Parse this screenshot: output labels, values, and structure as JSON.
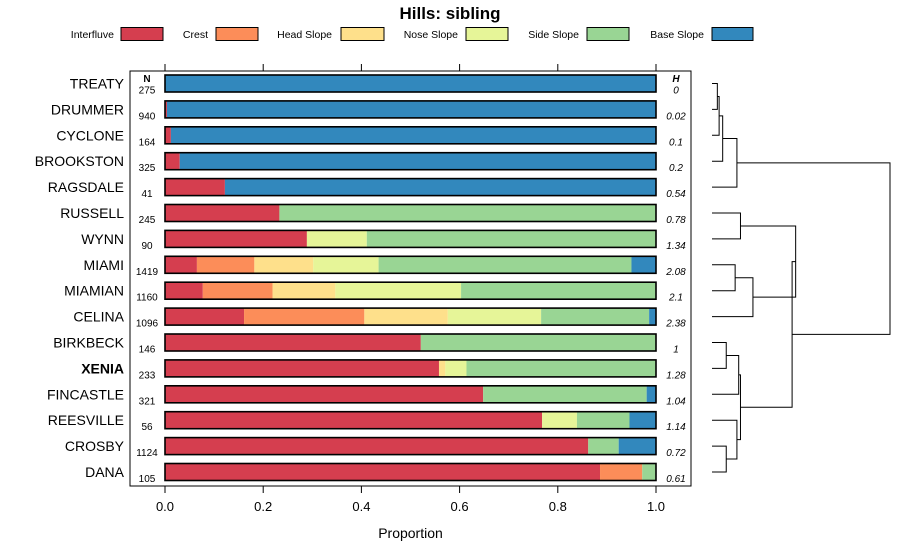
{
  "chart_data": {
    "type": "bar",
    "subtype": "stacked-horizontal-proportion",
    "title": "Hills: sibling",
    "xlabel": "Proportion",
    "xlim": [
      0,
      1
    ],
    "x_ticks": [
      "0.0",
      "0.2",
      "0.4",
      "0.6",
      "0.8",
      "1.0"
    ],
    "n_header": "N",
    "h_header": "H",
    "legend_position": "top",
    "series": [
      {
        "name": "Interfluve",
        "color": "#D53E4F"
      },
      {
        "name": "Crest",
        "color": "#FC8D59"
      },
      {
        "name": "Head Slope",
        "color": "#FEE08B"
      },
      {
        "name": "Nose Slope",
        "color": "#E6F598"
      },
      {
        "name": "Side Slope",
        "color": "#99D594"
      },
      {
        "name": "Base Slope",
        "color": "#3288BD"
      }
    ],
    "rows": [
      {
        "label": "TREATY",
        "n": "275",
        "h": "0",
        "bold": false,
        "values": [
          0,
          0,
          0,
          0,
          0,
          1.0
        ]
      },
      {
        "label": "DRUMMER",
        "n": "940",
        "h": "0.02",
        "bold": false,
        "values": [
          0.004,
          0,
          0,
          0,
          0,
          0.996
        ]
      },
      {
        "label": "CYCLONE",
        "n": "164",
        "h": "0.1",
        "bold": false,
        "values": [
          0.012,
          0,
          0,
          0,
          0,
          0.988
        ]
      },
      {
        "label": "BROOKSTON",
        "n": "325",
        "h": "0.2",
        "bold": false,
        "values": [
          0.03,
          0,
          0,
          0,
          0,
          0.97
        ]
      },
      {
        "label": "RAGSDALE",
        "n": "41",
        "h": "0.54",
        "bold": false,
        "values": [
          0.122,
          0,
          0,
          0,
          0,
          0.878
        ]
      },
      {
        "label": "RUSSELL",
        "n": "245",
        "h": "0.78",
        "bold": false,
        "values": [
          0.233,
          0,
          0,
          0,
          0.767,
          0
        ]
      },
      {
        "label": "WYNN",
        "n": "90",
        "h": "1.34",
        "bold": false,
        "values": [
          0.289,
          0,
          0,
          0.122,
          0.589,
          0
        ]
      },
      {
        "label": "MIAMI",
        "n": "1419",
        "h": "2.08",
        "bold": false,
        "values": [
          0.065,
          0.117,
          0.12,
          0.133,
          0.515,
          0.05
        ]
      },
      {
        "label": "MIAMIAN",
        "n": "1160",
        "h": "2.1",
        "bold": false,
        "values": [
          0.077,
          0.142,
          0.128,
          0.256,
          0.397,
          0
        ]
      },
      {
        "label": "CELINA",
        "n": "1096",
        "h": "2.38",
        "bold": false,
        "values": [
          0.161,
          0.245,
          0.17,
          0.19,
          0.22,
          0.014
        ]
      },
      {
        "label": "BIRKBECK",
        "n": "146",
        "h": "1",
        "bold": false,
        "values": [
          0.521,
          0,
          0,
          0,
          0.479,
          0
        ]
      },
      {
        "label": "XENIA",
        "n": "233",
        "h": "1.28",
        "bold": true,
        "values": [
          0.558,
          0,
          0.013,
          0.043,
          0.386,
          0
        ]
      },
      {
        "label": "FINCASTLE",
        "n": "321",
        "h": "1.04",
        "bold": false,
        "values": [
          0.648,
          0,
          0,
          0,
          0.333,
          0.019
        ]
      },
      {
        "label": "REESVILLE",
        "n": "56",
        "h": "1.14",
        "bold": false,
        "values": [
          0.768,
          0,
          0,
          0.071,
          0.107,
          0.054
        ]
      },
      {
        "label": "CROSBY",
        "n": "1124",
        "h": "0.72",
        "bold": false,
        "values": [
          0.862,
          0,
          0,
          0,
          0.062,
          0.076
        ]
      },
      {
        "label": "DANA",
        "n": "105",
        "h": "0.61",
        "bold": false,
        "values": [
          0.886,
          0.086,
          0,
          0,
          0.028,
          0
        ]
      }
    ],
    "dendrogram": {
      "clusters": [
        {
          "id": "c1",
          "left": "TREATY",
          "right": "DRUMMER",
          "height": 0.03
        },
        {
          "id": "c2",
          "left": "c1",
          "right": "CYCLONE",
          "height": 0.04
        },
        {
          "id": "c3",
          "left": "c2",
          "right": "BROOKSTON",
          "height": 0.06
        },
        {
          "id": "c4",
          "left": "c3",
          "right": "RAGSDALE",
          "height": 0.14
        },
        {
          "id": "c5",
          "left": "RUSSELL",
          "right": "WYNN",
          "height": 0.16
        },
        {
          "id": "c6",
          "left": "MIAMI",
          "right": "MIAMIAN",
          "height": 0.13
        },
        {
          "id": "c7",
          "left": "c6",
          "right": "CELINA",
          "height": 0.23
        },
        {
          "id": "c8",
          "left": "c5",
          "right": "c7",
          "height": 0.47
        },
        {
          "id": "c9",
          "left": "BIRKBECK",
          "right": "XENIA",
          "height": 0.08
        },
        {
          "id": "c10",
          "left": "c9",
          "right": "FINCASTLE",
          "height": 0.15
        },
        {
          "id": "c11",
          "left": "CROSBY",
          "right": "DANA",
          "height": 0.08
        },
        {
          "id": "c12",
          "left": "REESVILLE",
          "right": "c11",
          "height": 0.14
        },
        {
          "id": "c13",
          "left": "c10",
          "right": "c12",
          "height": 0.16
        },
        {
          "id": "c14",
          "left": "c8",
          "right": "c13",
          "height": 0.45
        },
        {
          "id": "c15",
          "left": "c4",
          "right": "c14",
          "height": 1.0
        }
      ]
    }
  }
}
